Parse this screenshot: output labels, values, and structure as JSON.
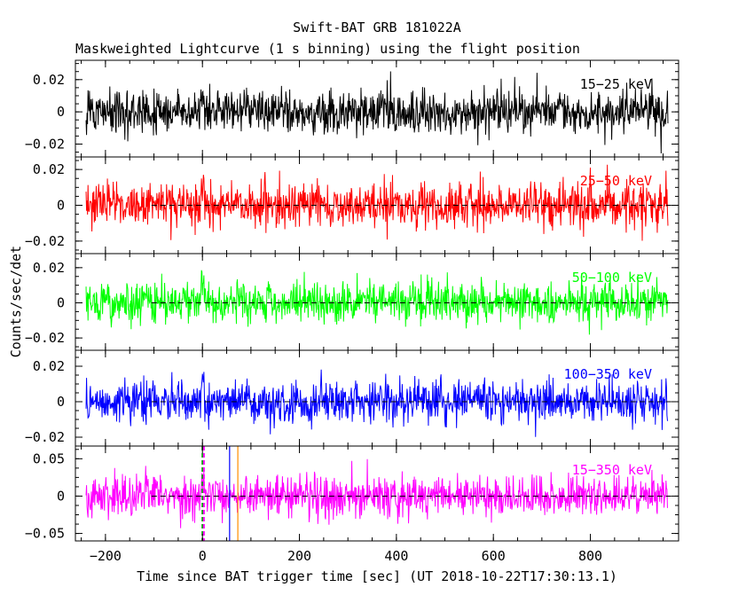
{
  "chart_data": {
    "type": "line",
    "title": "Swift-BAT GRB 181022A",
    "subtitle": "Maskweighted Lightcurve (1 s binning) using the flight position",
    "xlabel": "Time since BAT trigger time [sec] (UT 2018-10-22T17:30:13.1)",
    "ylabel": "Counts/sec/det",
    "xlim": [
      -262,
      982
    ],
    "x_ticks": [
      -200,
      0,
      200,
      400,
      600,
      800
    ],
    "x_tick_labels": [
      "−200",
      "0",
      "200",
      "400",
      "600",
      "800"
    ],
    "data_x_range": [
      -240,
      960
    ],
    "grid": false,
    "panels": [
      {
        "name": "15−25 keV",
        "color": "#000000",
        "ylim": [
          -0.028,
          0.032
        ],
        "yticks": [
          -0.02,
          0,
          0.02
        ],
        "ytick_labels": [
          "−0.02",
          "0",
          "0.02"
        ],
        "noise_sd": 0.0068,
        "zero_line": false
      },
      {
        "name": "25−50 keV",
        "color": "#ff0000",
        "ylim": [
          -0.027,
          0.027
        ],
        "yticks": [
          -0.02,
          0,
          0.02
        ],
        "ytick_labels": [
          "−0.02",
          "0",
          "0.02"
        ],
        "noise_sd": 0.0062,
        "zero_line": true
      },
      {
        "name": "50−100 keV",
        "color": "#00ff00",
        "ylim": [
          -0.027,
          0.028
        ],
        "yticks": [
          -0.02,
          0,
          0.02
        ],
        "ytick_labels": [
          "−0.02",
          "0",
          "0.02"
        ],
        "noise_sd": 0.0058,
        "zero_line": true
      },
      {
        "name": "100−350 keV",
        "color": "#0000ff",
        "ylim": [
          -0.025,
          0.029
        ],
        "yticks": [
          -0.02,
          0,
          0.02
        ],
        "ytick_labels": [
          "−0.02",
          "0",
          "0.02"
        ],
        "noise_sd": 0.0058,
        "zero_line": true
      },
      {
        "name": "15−350 keV",
        "color": "#ff00ff",
        "ylim": [
          -0.06,
          0.067
        ],
        "yticks": [
          -0.05,
          0,
          0.05
        ],
        "ytick_labels": [
          "−0.05",
          "0",
          "0.05"
        ],
        "noise_sd": 0.0135,
        "zero_line": true
      }
    ],
    "marker_lines": [
      {
        "x": 0,
        "color": "#00aa00",
        "style": "dashed"
      },
      {
        "x": 3,
        "color": "#ff00ff",
        "style": "dashed"
      },
      {
        "x": 56,
        "color": "#0000ff",
        "style": "solid"
      },
      {
        "x": 73,
        "color": "#ff8c00",
        "style": "solid"
      }
    ]
  }
}
